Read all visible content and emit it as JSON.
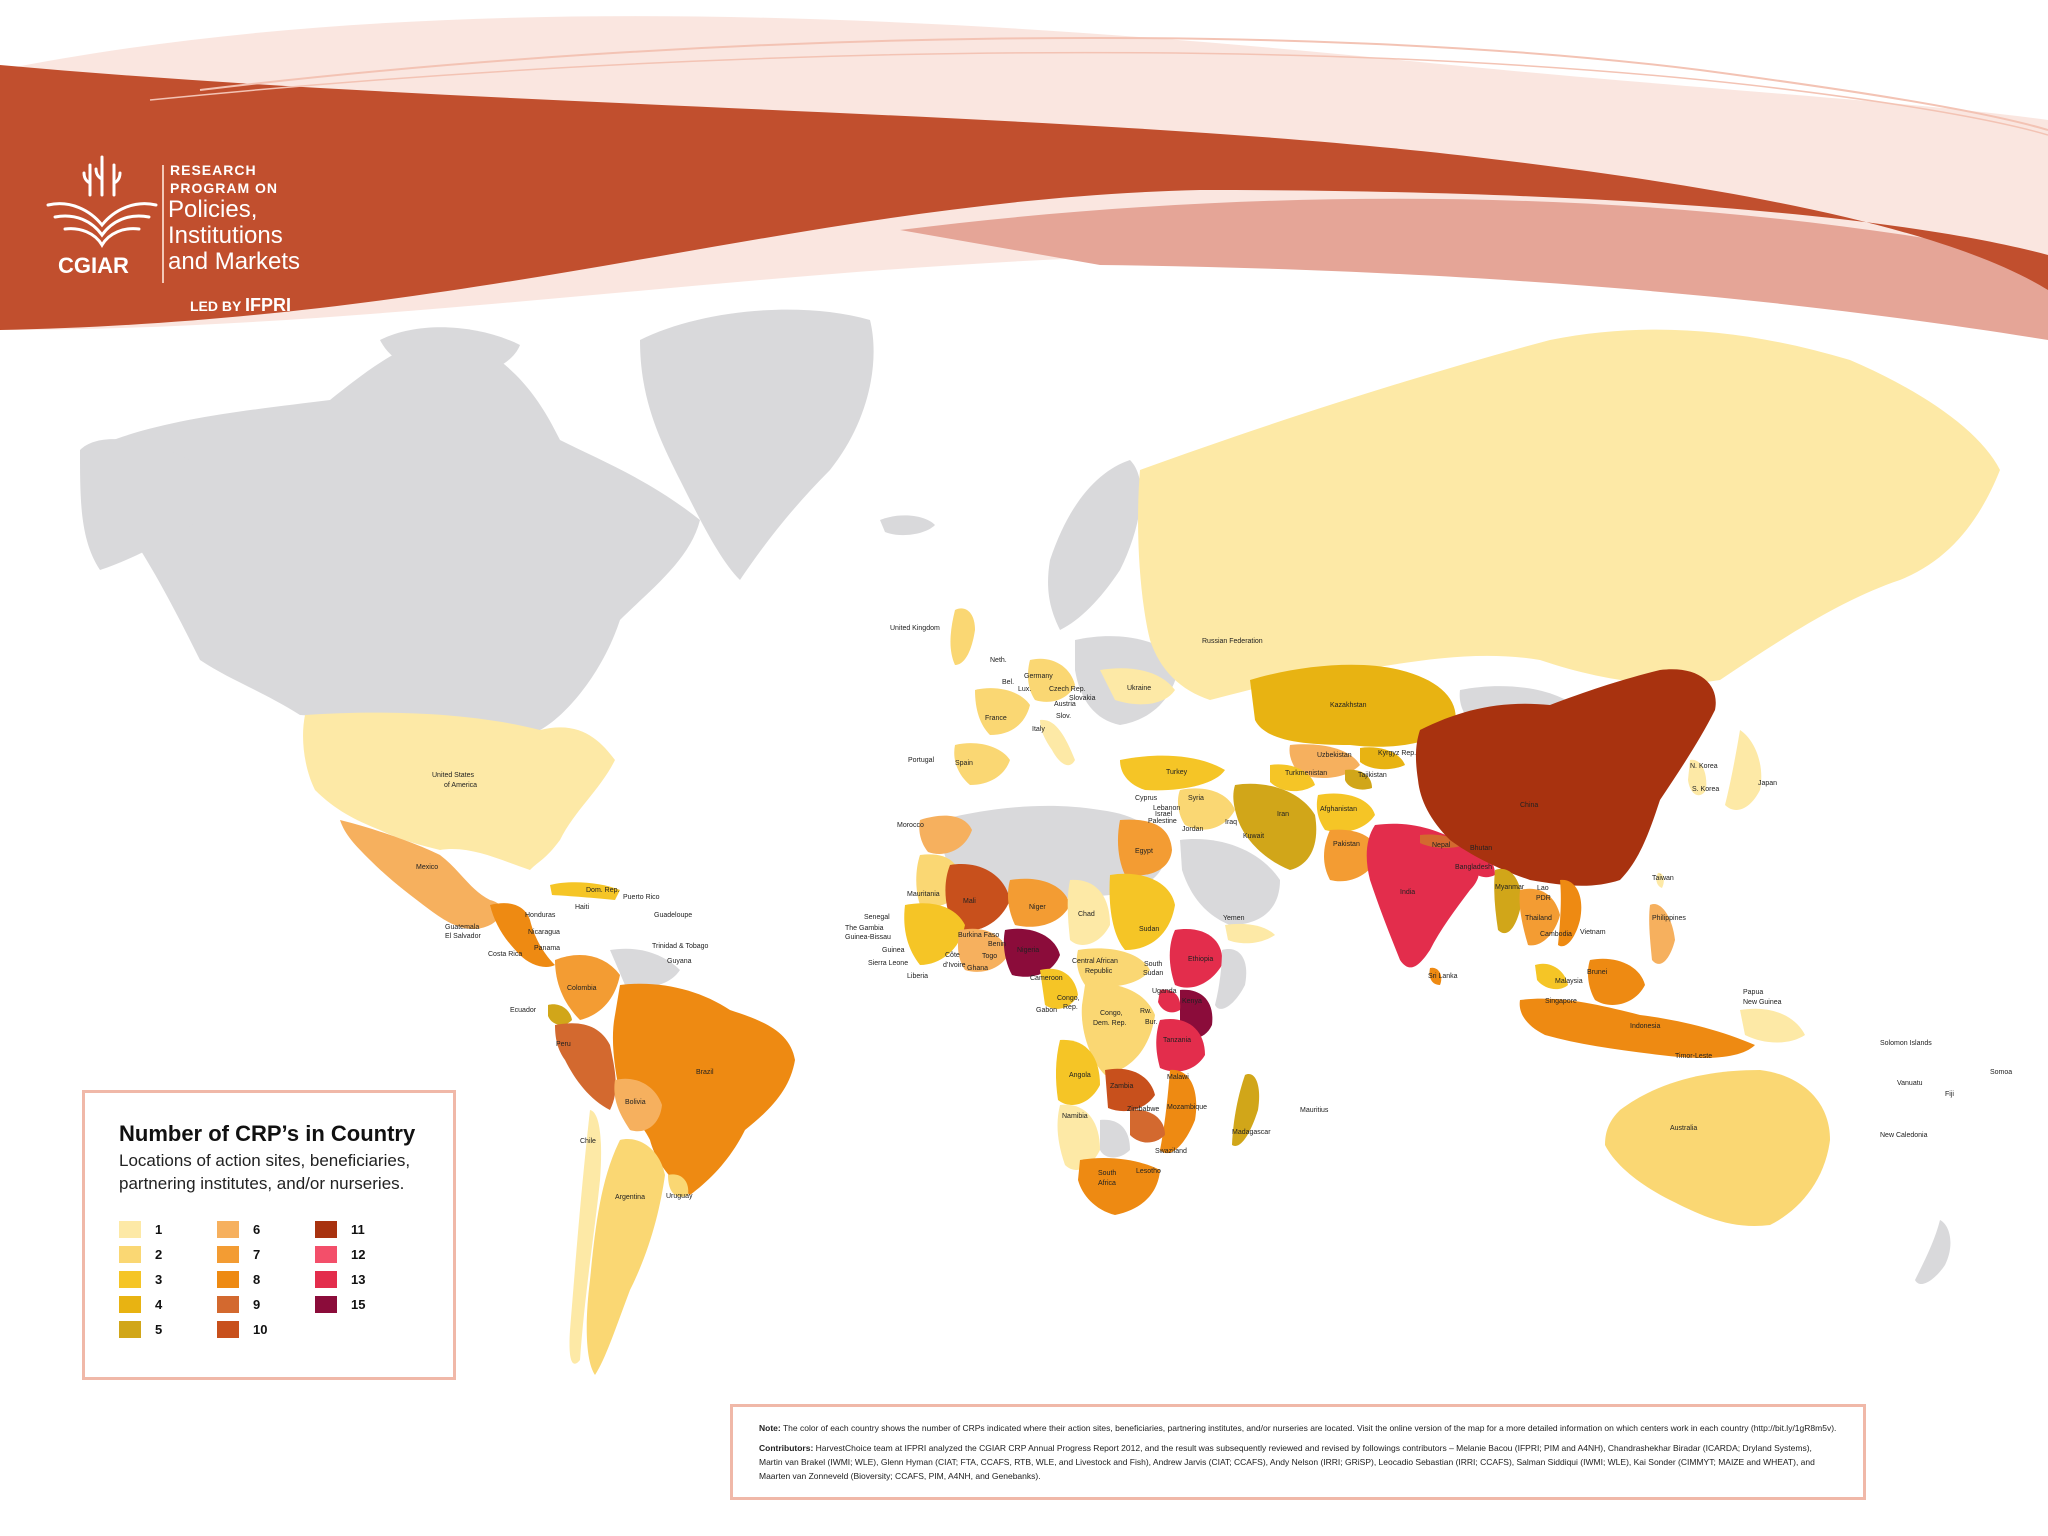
{
  "header": {
    "logo_text": "CGIAR",
    "program_small_1": "RESEARCH",
    "program_small_2": "PROGRAM ON",
    "program_big_1": "Policies,",
    "program_big_2": "Institutions",
    "program_big_3": "and Markets",
    "led_by": "LED BY",
    "led_by_org": "IFPRI"
  },
  "colors": {
    "banner": "#c14f2e",
    "no_data": "#d9d9db",
    "ocean": "#ffffff",
    "scale": [
      "#fde9a6",
      "#fad773",
      "#f5c526",
      "#e8b312",
      "#d1a619",
      "#f6b05e",
      "#f39c33",
      "#ee8a12",
      "#d3692f",
      "#c8501c",
      "#a8320f",
      "#f34f6a",
      "#e32d4c",
      "#8b0c3a"
    ]
  },
  "legend": {
    "title": "Number of CRP’s in Country",
    "subtitle": "Locations of action sites, beneficiaries, partnering institutes, and/or nurseries.",
    "items": [
      {
        "value": "1",
        "color": "#fde9a6"
      },
      {
        "value": "2",
        "color": "#fad773"
      },
      {
        "value": "3",
        "color": "#f5c526"
      },
      {
        "value": "4",
        "color": "#e8b312"
      },
      {
        "value": "5",
        "color": "#d1a619"
      },
      {
        "value": "6",
        "color": "#f6b05e"
      },
      {
        "value": "7",
        "color": "#f39c33"
      },
      {
        "value": "8",
        "color": "#ee8a12"
      },
      {
        "value": "9",
        "color": "#d3692f"
      },
      {
        "value": "10",
        "color": "#c8501c"
      },
      {
        "value": "11",
        "color": "#a8320f"
      },
      {
        "value": "12",
        "color": "#f34f6a"
      },
      {
        "value": "13",
        "color": "#e32d4c"
      },
      {
        "value": "15",
        "color": "#8b0c3a"
      }
    ]
  },
  "countries": [
    {
      "name": "Russian Federation",
      "crps": 1
    },
    {
      "name": "United States of America",
      "crps": 1
    },
    {
      "name": "Mexico",
      "crps": 6
    },
    {
      "name": "China",
      "crps": 11
    },
    {
      "name": "India",
      "crps": 13
    },
    {
      "name": "Brazil",
      "crps": 8
    },
    {
      "name": "Australia",
      "crps": 2
    },
    {
      "name": "Kazakhstan",
      "crps": 4
    },
    {
      "name": "Ethiopia",
      "crps": 13
    },
    {
      "name": "Kenya",
      "crps": 15
    },
    {
      "name": "Nigeria",
      "crps": 15
    },
    {
      "name": "Tanzania",
      "crps": 13
    },
    {
      "name": "Mali",
      "crps": 10
    },
    {
      "name": "Peru",
      "crps": 9
    },
    {
      "name": "Iran",
      "crps": 5
    },
    {
      "name": "Egypt",
      "crps": 7
    },
    {
      "name": "Sudan",
      "crps": 3
    },
    {
      "name": "South Africa",
      "crps": 8
    },
    {
      "name": "Argentina",
      "crps": 2
    },
    {
      "name": "Madagascar",
      "crps": 5
    }
  ],
  "labels": {
    "united_kingdom": "United Kingdom",
    "neth": "Neth.",
    "bel": "Bel.",
    "lux": "Lux.",
    "germany": "Germany",
    "czech": "Czech Rep.",
    "slovakia": "Slovakia",
    "austria": "Austria",
    "slov": "Slov.",
    "ukraine": "Ukraine",
    "france": "France",
    "italy": "Italy",
    "portugal": "Portugal",
    "spain": "Spain",
    "russia": "Russian Federation",
    "kazakhstan": "Kazakhstan",
    "uzbekistan": "Uzbekistan",
    "kyrgyz": "Kyrgyz Rep.",
    "turkmenistan": "Turkmenistan",
    "tajikistan": "Tajikistan",
    "turkey": "Turkey",
    "cyprus": "Cyprus",
    "syria": "Syria",
    "lebanon": "Lebanon",
    "israel": "Israel",
    "palestine": "Palestine",
    "jordan": "Jordan",
    "iraq": "Iraq",
    "iran": "Iran",
    "kuwait": "Kuwait",
    "afghanistan": "Afghanistan",
    "pakistan": "Pakistan",
    "nepal": "Nepal",
    "bhutan": "Bhutan",
    "bangladesh": "Bangladesh",
    "india": "India",
    "sri_lanka": "Sri Lanka",
    "china": "China",
    "n_korea": "N. Korea",
    "s_korea": "S. Korea",
    "japan": "Japan",
    "taiwan": "Taiwan",
    "myanmar": "Myanmar",
    "lao": "Lao",
    "pdr": "PDR",
    "thailand": "Thailand",
    "cambodia": "Cambodia",
    "vietnam": "Vietnam",
    "philippines": "Philippines",
    "malaysia": "Malaysia",
    "brunei": "Brunei",
    "singapore": "Singapore",
    "indonesia": "Indonesia",
    "timor": "Timor-Leste",
    "png_1": "Papua",
    "png_2": "New Guinea",
    "solomon": "Solomon Islands",
    "vanuatu": "Vanuatu",
    "fiji": "Fiji",
    "samoa": "Somoa",
    "new_caledonia": "New Caledonia",
    "australia": "Australia",
    "mauritius": "Mauritius",
    "usa_1": "United States",
    "usa_2": "of America",
    "mexico": "Mexico",
    "dom_rep": "Dom. Rep.",
    "haiti": "Haiti",
    "puerto_rico": "Puerto Rico",
    "guadeloupe": "Guadeloupe",
    "honduras": "Honduras",
    "guatemala": "Guatemala",
    "el_salvador": "El Salvador",
    "nicaragua": "Nicaragua",
    "panama": "Panama",
    "costa_rica": "Costa Rica",
    "trinidad": "Trinidad & Tobago",
    "guyana": "Guyana",
    "colombia": "Colombia",
    "ecuador": "Ecuador",
    "peru": "Peru",
    "brazil": "Brazil",
    "bolivia": "Bolivia",
    "chile": "Chile",
    "argentina": "Argentina",
    "uruguay": "Uruguay",
    "morocco": "Morocco",
    "egypt": "Egypt",
    "mauritania": "Mauritania",
    "mali": "Mali",
    "niger": "Niger",
    "chad": "Chad",
    "sudan": "Sudan",
    "yemen": "Yemen",
    "senegal": "Senegal",
    "gambia": "The Gambia",
    "guinea_bissau": "Guinea-Bissau",
    "guinea": "Guinea",
    "sierra_leone": "Sierra Leone",
    "liberia": "Liberia",
    "cote_1": "Côte",
    "cote_2": "d’Ivoire",
    "burkina": "Burkina Faso",
    "benin": "Benin",
    "togo": "Togo",
    "ghana": "Ghana",
    "nigeria": "Nigeria",
    "cameroon": "Cameroon",
    "car_1": "Central African",
    "car_2": "Republic",
    "south_sudan_1": "South",
    "south_sudan_2": "Sudan",
    "ethiopia": "Ethiopia",
    "uganda": "Uganda",
    "kenya": "Kenya",
    "rwanda": "Rw.",
    "burundi": "Bur.",
    "tanzania": "Tanzania",
    "gabon": "Gabon",
    "congo_1": "Congo,",
    "congo_2": "Rep.",
    "drc_1": "Congo,",
    "drc_2": "Dem. Rep.",
    "angola": "Angola",
    "zambia": "Zambia",
    "malawi": "Malawi",
    "mozambique": "Mozambique",
    "zimbabwe": "Zimbabwe",
    "namibia": "Namibia",
    "madagascar": "Madagascar",
    "swaziland": "Swaziland",
    "lesotho": "Lesotho",
    "south_africa_1": "South",
    "south_africa_2": "Africa"
  },
  "note": {
    "note_label": "Note:",
    "note_text": "The color of each country shows the number of CRPs indicated where their action sites, beneficiaries, partnering institutes, and/or nurseries are located. Visit the online version of the map for a more detailed information on which centers work in each country (http://bit.ly/1gR8m5v).",
    "contrib_label": "Contributors:",
    "contrib_text": "HarvestChoice team at IFPRI analyzed the CGIAR CRP Annual Progress Report 2012, and the result was subsequently reviewed and revised by followings contributors – Melanie Bacou (IFPRI; PIM and A4NH), Chandrashekhar Biradar (ICARDA; Dryland Systems), Martin van Brakel (IWMI; WLE), Glenn Hyman (CIAT; FTA, CCAFS, RTB, WLE, and Livestock and Fish), Andrew Jarvis (CIAT; CCAFS), Andy Nelson (IRRI; GRiSP), Leocadio Sebastian (IRRI; CCAFS), Salman Siddiqui (IWMI; WLE), Kai Sonder (CIMMYT; MAIZE and WHEAT), and Maarten van Zonneveld (Bioversity; CCAFS, PIM, A4NH, and Genebanks)."
  }
}
